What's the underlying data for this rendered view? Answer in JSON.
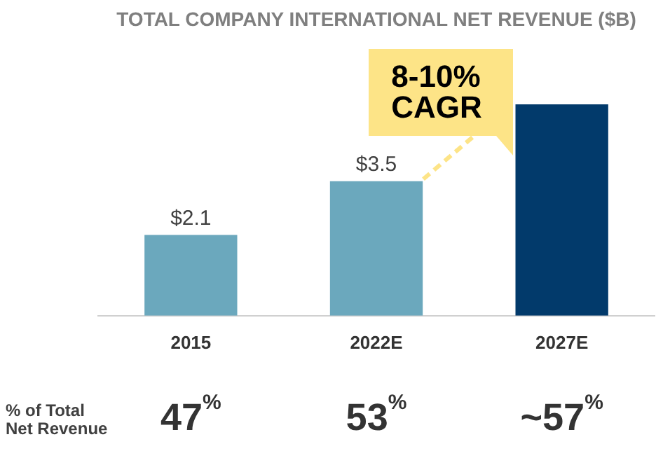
{
  "chart_data": {
    "type": "bar",
    "title": "TOTAL COMPANY INTERNATIONAL NET REVENUE ($B)",
    "categories": [
      "2015",
      "2022E",
      "2027E"
    ],
    "values": [
      2.1,
      3.5,
      5.5
    ],
    "colors": [
      "#6ba8bd",
      "#6ba8bd",
      "#023a6b"
    ],
    "value_labels": [
      "$2.1",
      "$3.5",
      null
    ],
    "annotations": [
      "8-10%\nCAGR",
      "% of Total\nNet Revenue",
      "47$^{%}$",
      "53$^{%}$",
      "~57$^{%}$"
    ],
    "grid": false,
    "legend": false
  }
}
